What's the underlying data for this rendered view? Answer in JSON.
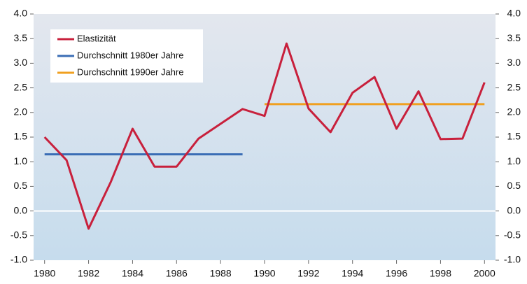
{
  "chart_data": {
    "type": "line",
    "x": [
      1980,
      1981,
      1982,
      1983,
      1984,
      1985,
      1986,
      1987,
      1988,
      1989,
      1990,
      1991,
      1992,
      1993,
      1994,
      1995,
      1996,
      1997,
      1998,
      1999,
      2000
    ],
    "series": [
      {
        "name": "Elastizität",
        "color": "#c8203c",
        "values": [
          1.5,
          1.03,
          -0.36,
          0.58,
          1.67,
          0.9,
          0.9,
          1.47,
          1.77,
          2.07,
          1.93,
          3.4,
          2.08,
          1.6,
          2.4,
          2.72,
          1.67,
          2.43,
          1.46,
          1.47,
          2.61
        ]
      },
      {
        "name": "Durchschnitt 1980er Jahre",
        "color": "#3a6db5",
        "values": [
          1.15,
          1.15,
          1.15,
          1.15,
          1.15,
          1.15,
          1.15,
          1.15,
          1.15,
          1.15,
          null,
          null,
          null,
          null,
          null,
          null,
          null,
          null,
          null,
          null,
          null
        ]
      },
      {
        "name": "Durchschnitt 1990er Jahre",
        "color": "#f0a020",
        "values": [
          null,
          null,
          null,
          null,
          null,
          null,
          null,
          null,
          null,
          null,
          2.17,
          2.17,
          2.17,
          2.17,
          2.17,
          2.17,
          2.17,
          2.17,
          2.17,
          2.17,
          2.17
        ]
      }
    ],
    "xlim": [
      1979.5,
      2000.5
    ],
    "xticks": [
      1980,
      1982,
      1984,
      1986,
      1988,
      1990,
      1992,
      1994,
      1996,
      1998,
      2000
    ],
    "ylim": [
      -1,
      4
    ],
    "yticks": [
      {
        "value": 4,
        "label": "4.0"
      },
      {
        "value": 3.5,
        "label": "3.5"
      },
      {
        "value": 3,
        "label": "3.0"
      },
      {
        "value": 2.5,
        "label": "2.5"
      },
      {
        "value": 2,
        "label": "2.0"
      },
      {
        "value": 1.5,
        "label": "1.5"
      },
      {
        "value": 1,
        "label": "1.0"
      },
      {
        "value": 0.5,
        "label": "0.5"
      },
      {
        "value": 0,
        "label": "0.0"
      },
      {
        "value": -0.5,
        "label": "-0.5"
      },
      {
        "value": -1,
        "label": "-1.0"
      }
    ],
    "y2lim": [
      -1,
      4
    ],
    "y2ticks": [
      {
        "value": 4,
        "label": "4.0"
      },
      {
        "value": 3.5,
        "label": "3.5"
      },
      {
        "value": 3,
        "label": "3.0"
      },
      {
        "value": 2.5,
        "label": "2.5"
      },
      {
        "value": 2,
        "label": "2.0"
      },
      {
        "value": 1.5,
        "label": "1.5"
      },
      {
        "value": 1,
        "label": "1.0"
      },
      {
        "value": 0.5,
        "label": "0.5"
      },
      {
        "value": 0,
        "label": "0.0"
      },
      {
        "value": -0.5,
        "label": "-0.5"
      },
      {
        "value": -1,
        "label": "-1.0"
      }
    ],
    "legend": "top-left"
  }
}
